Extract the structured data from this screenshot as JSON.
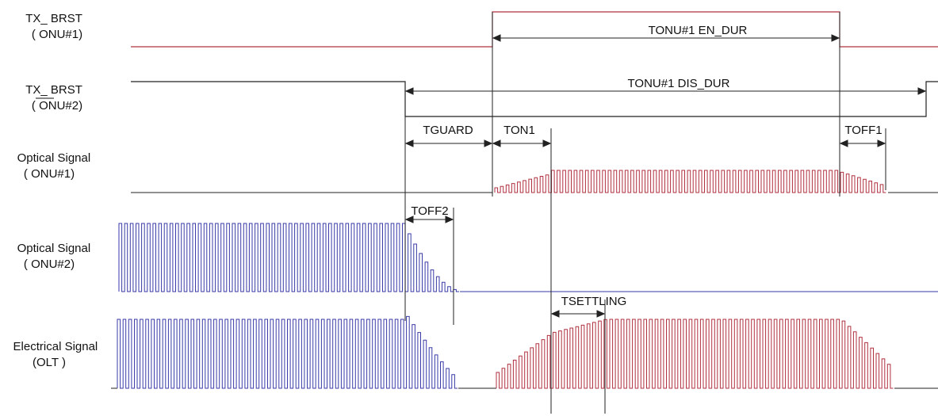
{
  "rows": [
    {
      "id": "tx_brst_onu1",
      "label_lines": [
        "TX_ BRST",
        "( ONU#1)"
      ],
      "overline": "ONU#1"
    },
    {
      "id": "tx_brst_onu2",
      "label_lines": [
        "TX_ BRST",
        "( ONU#2)"
      ],
      "overline": "ONU#2"
    },
    {
      "id": "optical_onu1",
      "label_lines": [
        "Optical Signal",
        "( ONU#1)"
      ]
    },
    {
      "id": "optical_onu2",
      "label_lines": [
        "Optical Signal",
        "( ONU#2)"
      ]
    },
    {
      "id": "electrical_olt",
      "label_lines": [
        "Electrical Signal",
        "(OLT )"
      ]
    }
  ],
  "annotations": {
    "en_dur": "TONU#1 EN_DUR",
    "dis_dur": "TONU#1 DIS_DUR",
    "tguard": "TGUARD",
    "ton1": "TON1",
    "toff1": "TOFF1",
    "toff2": "TOFF2",
    "tsettling": "TSETTLING"
  },
  "colors": {
    "onu1": "#b0303f",
    "onu2": "#3a3aa8",
    "black": "#222222"
  }
}
